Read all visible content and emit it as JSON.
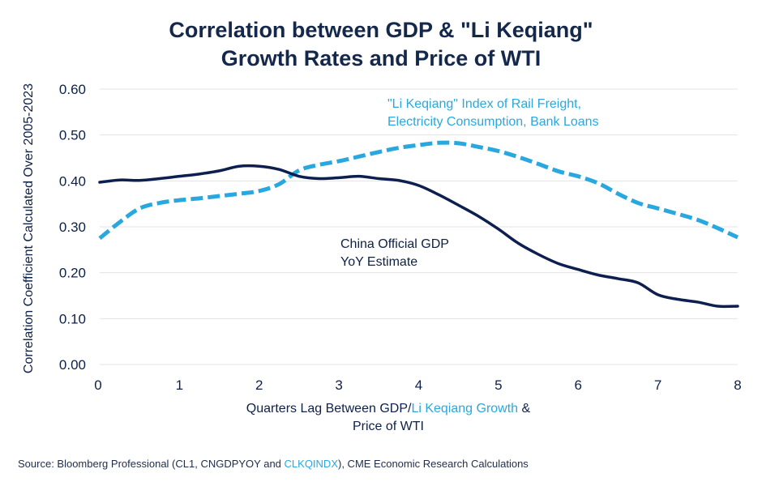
{
  "chart_data": {
    "type": "line",
    "title_line1": "Correlation between GDP & \"Li Keqiang\"",
    "title_line2": "Growth Rates and Price of WTI",
    "ylabel": "Correlation Coefficient Calculated Over 2005-2023",
    "xlabel_part1": "Quarters Lag Between GDP/",
    "xlabel_highlight": "Li Keqiang Growth",
    "xlabel_part2": " &",
    "xlabel_line2": "Price of WTI",
    "xlim": [
      0,
      8
    ],
    "ylim": [
      0,
      0.6
    ],
    "x_ticks": [
      0,
      1,
      2,
      3,
      4,
      5,
      6,
      7,
      8
    ],
    "x_tick_labels": [
      "0",
      "1",
      "2",
      "3",
      "4",
      "5",
      "6",
      "7",
      "8"
    ],
    "y_ticks": [
      0,
      0.1,
      0.2,
      0.3,
      0.4,
      0.5,
      0.6
    ],
    "y_tick_labels": [
      "0.00",
      "0.10",
      "0.20",
      "0.30",
      "0.40",
      "0.50",
      "0.60"
    ],
    "grid": "horizontal",
    "series": [
      {
        "name": "\"Li Keqiang\" Index of Rail Freight, Electricity Consumption, Bank Loans",
        "label_lines": [
          "\"Li Keqiang\" Index of Rail Freight,",
          "Electricity Consumption, Bank Loans"
        ],
        "color": "#29a8e0",
        "style": "dashed",
        "x": [
          0,
          0.25,
          0.5,
          0.75,
          1,
          1.25,
          1.5,
          1.75,
          2,
          2.25,
          2.5,
          2.75,
          3,
          3.25,
          3.5,
          3.75,
          4,
          4.25,
          4.5,
          4.75,
          5,
          5.25,
          5.5,
          5.75,
          6,
          6.25,
          6.5,
          6.75,
          7,
          7.25,
          7.5,
          7.75,
          8
        ],
        "y": [
          0.275,
          0.31,
          0.34,
          0.352,
          0.358,
          0.362,
          0.367,
          0.372,
          0.378,
          0.393,
          0.423,
          0.435,
          0.443,
          0.453,
          0.463,
          0.472,
          0.478,
          0.483,
          0.482,
          0.474,
          0.465,
          0.452,
          0.437,
          0.421,
          0.41,
          0.395,
          0.372,
          0.352,
          0.34,
          0.328,
          0.315,
          0.297,
          0.277
        ]
      },
      {
        "name": "China Official GDP YoY Estimate",
        "label_lines": [
          "China Official GDP",
          "YoY Estimate"
        ],
        "color": "#0d1f4e",
        "style": "solid",
        "x": [
          0,
          0.25,
          0.5,
          0.75,
          1,
          1.25,
          1.5,
          1.75,
          2,
          2.25,
          2.5,
          2.75,
          3,
          3.25,
          3.5,
          3.75,
          4,
          4.25,
          4.5,
          4.75,
          5,
          5.25,
          5.5,
          5.75,
          6,
          6.25,
          6.5,
          6.75,
          7,
          7.25,
          7.5,
          7.75,
          8
        ],
        "y": [
          0.397,
          0.402,
          0.401,
          0.405,
          0.41,
          0.415,
          0.422,
          0.432,
          0.432,
          0.425,
          0.41,
          0.405,
          0.407,
          0.41,
          0.405,
          0.401,
          0.39,
          0.37,
          0.347,
          0.323,
          0.295,
          0.264,
          0.24,
          0.22,
          0.207,
          0.195,
          0.187,
          0.178,
          0.152,
          0.142,
          0.136,
          0.127,
          0.127
        ]
      }
    ]
  },
  "source": {
    "prefix": "Source: Bloomberg Professional (CL1, CNGDPYOY and ",
    "highlight": "CLKQINDX",
    "suffix": "), CME Economic Research Calculations"
  },
  "colors": {
    "text": "#0d2048",
    "accent": "#29a8e0",
    "grid": "#e3e3e3"
  }
}
